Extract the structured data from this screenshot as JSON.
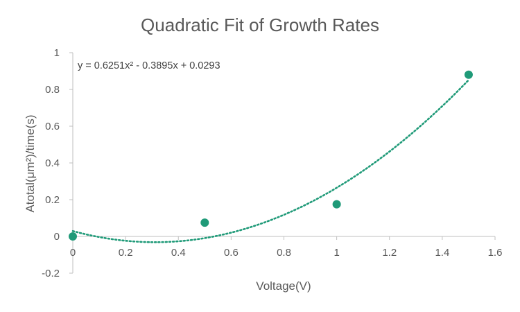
{
  "chart_data": {
    "type": "scatter",
    "title": "Quadratic Fit of Growth Rates",
    "xlabel": "Voltage(V)",
    "ylabel": "Atotal(μm²)/time(s)",
    "xlim": [
      0,
      1.6
    ],
    "ylim": [
      -0.2,
      1
    ],
    "x_ticks": [
      "0",
      "0.2",
      "0.4",
      "0.6",
      "0.8",
      "1",
      "1.2",
      "1.4",
      "1.6"
    ],
    "y_ticks": [
      "-0.2",
      "0",
      "0.2",
      "0.4",
      "0.6",
      "0.8",
      "1"
    ],
    "grid": false,
    "legend": "none",
    "series": [
      {
        "x": [
          0,
          0.5,
          1,
          1.5
        ],
        "y": [
          0,
          0.075,
          0.175,
          0.88
        ],
        "color": "#1f9a78"
      }
    ],
    "trendline": {
      "type": "polynomial",
      "order": 2,
      "coefficients": [
        0.6251,
        -0.3895,
        0.0293
      ],
      "equation": "y = 0.6251x² - 0.3895x + 0.0293",
      "style": "dotted",
      "color": "#1f9a78"
    }
  }
}
